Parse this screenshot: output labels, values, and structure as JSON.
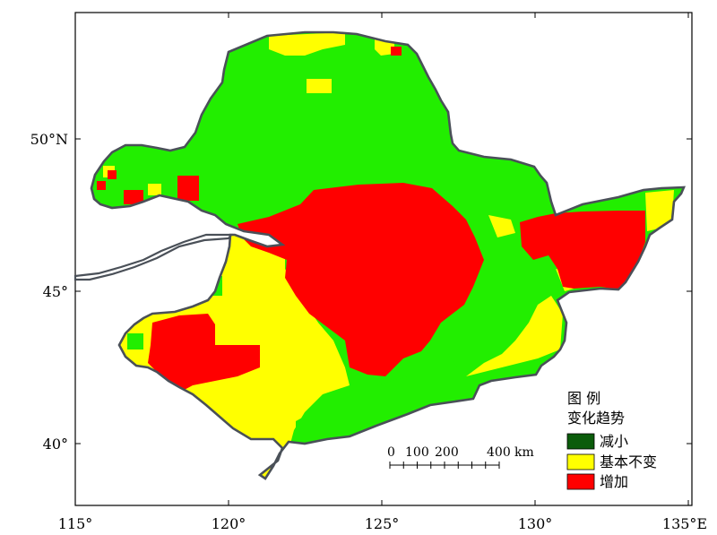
{
  "map": {
    "x_axis": {
      "ticks": [
        {
          "lon": 115,
          "label": "115°"
        },
        {
          "lon": 120,
          "label": "120°"
        },
        {
          "lon": 125,
          "label": "125°"
        },
        {
          "lon": 130,
          "label": "130°"
        },
        {
          "lon": 135,
          "label": "135°E"
        }
      ]
    },
    "y_axis": {
      "ticks": [
        {
          "lat": 50,
          "label": "50°N"
        },
        {
          "lat": 45,
          "label": "45°"
        },
        {
          "lat": 40,
          "label": "40°"
        }
      ]
    },
    "legend": {
      "title_line1": "图 例",
      "title_line2": "变化趋势",
      "items": [
        {
          "label": "减小",
          "color": "#0b5c0b"
        },
        {
          "label": "基本不变",
          "color": "#ffff00"
        },
        {
          "label": "增加",
          "color": "#ff0000"
        }
      ]
    },
    "scale_bar": {
      "labels": [
        "0",
        "100",
        "200",
        "400",
        "km"
      ],
      "km_max": 400
    },
    "colors": {
      "green_region": "#22ee00",
      "yellow_region": "#ffff00",
      "red_region": "#ff0000",
      "boundary": "#4a5058"
    }
  }
}
